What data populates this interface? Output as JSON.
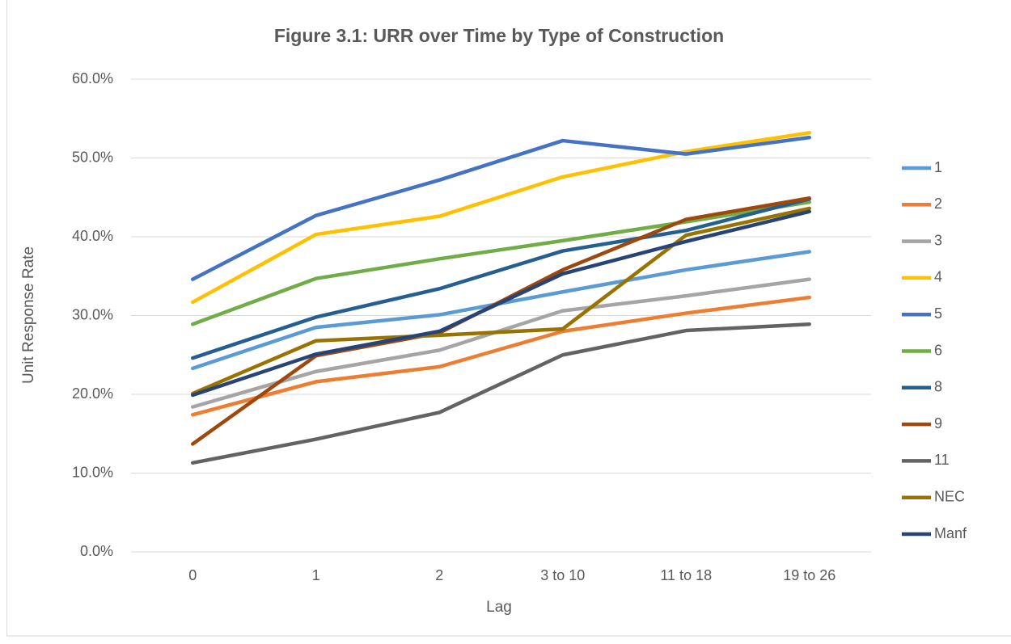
{
  "chart_data": {
    "type": "line",
    "title": "Figure 3.1: URR over Time by Type of Construction",
    "x_label": "Lag",
    "y_label": "Unit Response Rate",
    "categories": [
      "0",
      "1",
      "2",
      "3 to 10",
      "11 to 18",
      "19 to 26"
    ],
    "ylim": [
      0,
      60
    ],
    "yticks": [
      {
        "value": 0,
        "label": "0.0%"
      },
      {
        "value": 10,
        "label": "10.0%"
      },
      {
        "value": 20,
        "label": "20.0%"
      },
      {
        "value": 30,
        "label": "30.0%"
      },
      {
        "value": 40,
        "label": "40.0%"
      },
      {
        "value": 50,
        "label": "50.0%"
      },
      {
        "value": 60,
        "label": "60.0%"
      }
    ],
    "grid": true,
    "legend": "right",
    "series": [
      {
        "name": "1",
        "color": "#5b9bd5",
        "values": [
          23.3,
          28.5,
          30.1,
          33.0,
          35.8,
          38.1
        ]
      },
      {
        "name": "2",
        "color": "#ed7d31",
        "values": [
          17.4,
          21.6,
          23.5,
          28.0,
          30.3,
          32.3
        ]
      },
      {
        "name": "3",
        "color": "#a5a5a5",
        "values": [
          18.4,
          22.9,
          25.6,
          30.6,
          32.5,
          34.6
        ]
      },
      {
        "name": "4",
        "color": "#ffc000",
        "values": [
          31.7,
          40.3,
          42.6,
          47.6,
          50.8,
          53.2
        ]
      },
      {
        "name": "5",
        "color": "#4472c4",
        "values": [
          34.6,
          42.7,
          47.2,
          52.2,
          50.5,
          52.6
        ]
      },
      {
        "name": "6",
        "color": "#70ad47",
        "values": [
          28.9,
          34.7,
          37.2,
          39.5,
          41.9,
          44.4
        ]
      },
      {
        "name": "8",
        "color": "#255e91",
        "values": [
          24.6,
          29.8,
          33.4,
          38.2,
          40.8,
          44.8
        ]
      },
      {
        "name": "9",
        "color": "#9e480e",
        "values": [
          13.7,
          24.9,
          27.8,
          35.8,
          42.2,
          44.9
        ]
      },
      {
        "name": "11",
        "color": "#636363",
        "values": [
          11.3,
          14.3,
          17.7,
          25.0,
          28.1,
          28.9
        ]
      },
      {
        "name": "NEC",
        "color": "#997300",
        "values": [
          20.1,
          26.8,
          27.5,
          28.3,
          40.2,
          43.6
        ]
      },
      {
        "name": "Manf",
        "color": "#264478",
        "values": [
          19.9,
          25.1,
          28.0,
          35.3,
          39.4,
          43.2
        ]
      }
    ]
  }
}
